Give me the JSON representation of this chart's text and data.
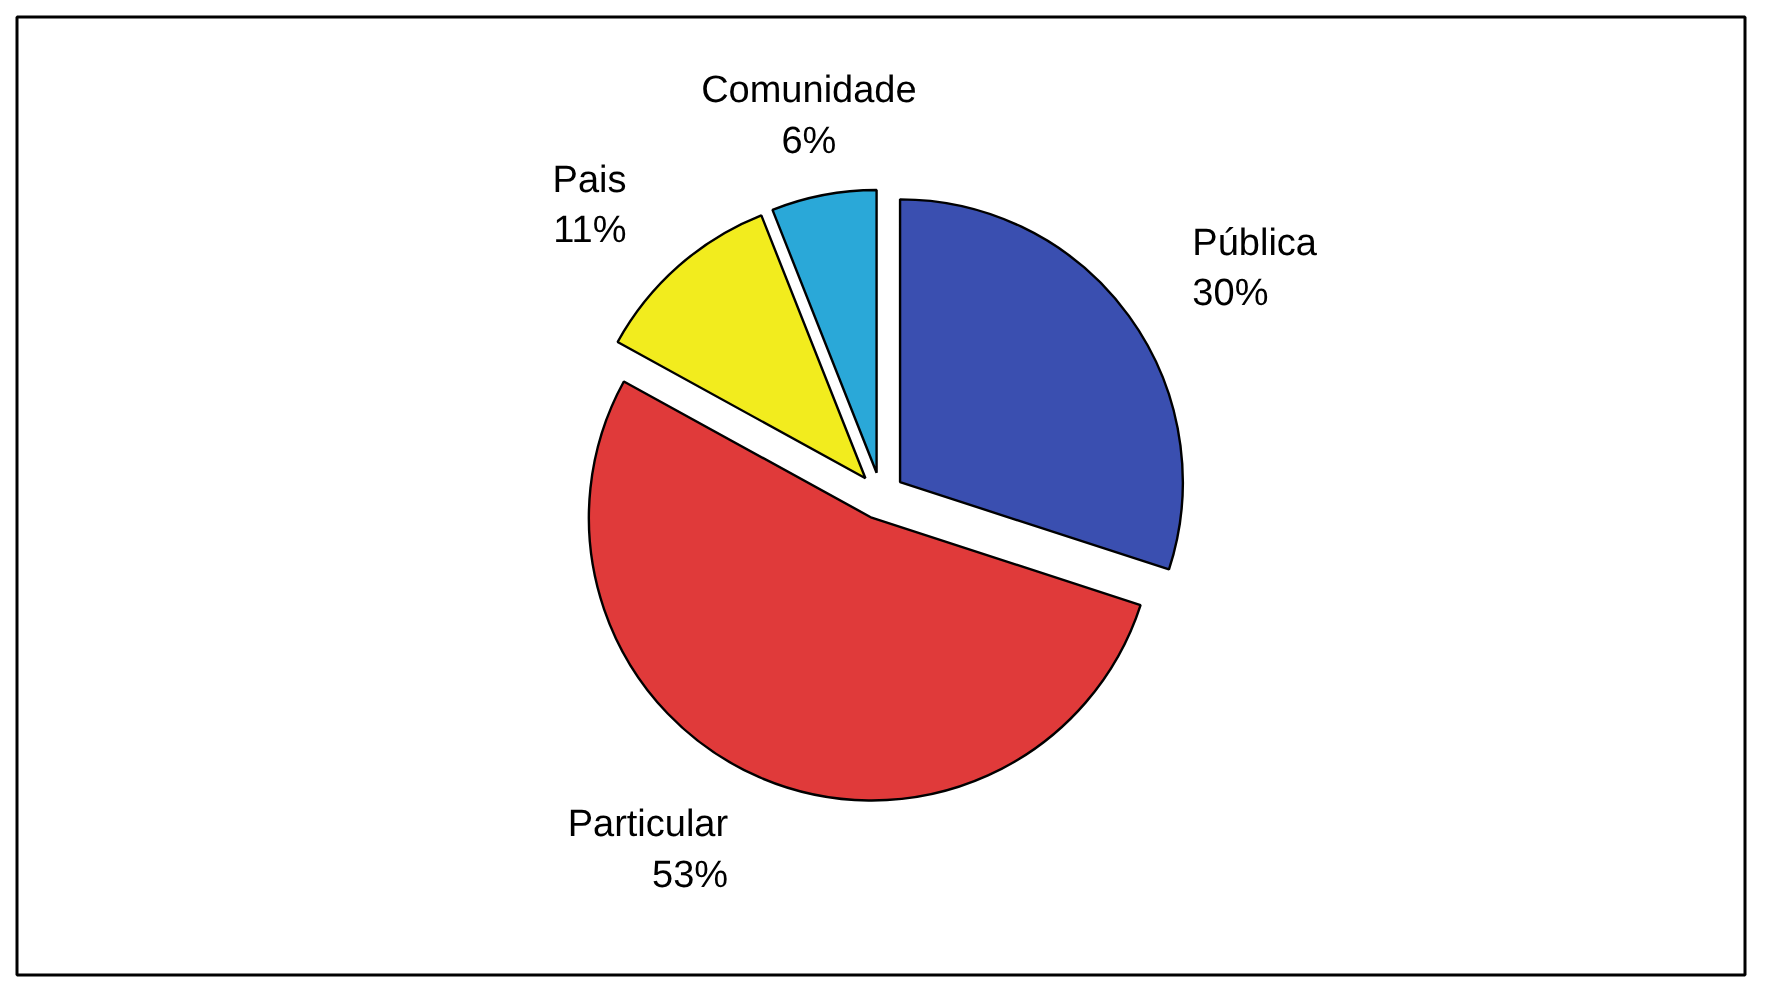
{
  "chart_data": {
    "type": "pie",
    "categories": [
      "Pública",
      "Particular",
      "Pais",
      "Comunidade"
    ],
    "values": [
      30,
      53,
      11,
      6
    ],
    "colors": [
      "#3a4fb0",
      "#e03a3a",
      "#f2ec1e",
      "#2aa8d8"
    ],
    "value_labels": [
      "30%",
      "53%",
      "11%",
      "6%"
    ]
  }
}
